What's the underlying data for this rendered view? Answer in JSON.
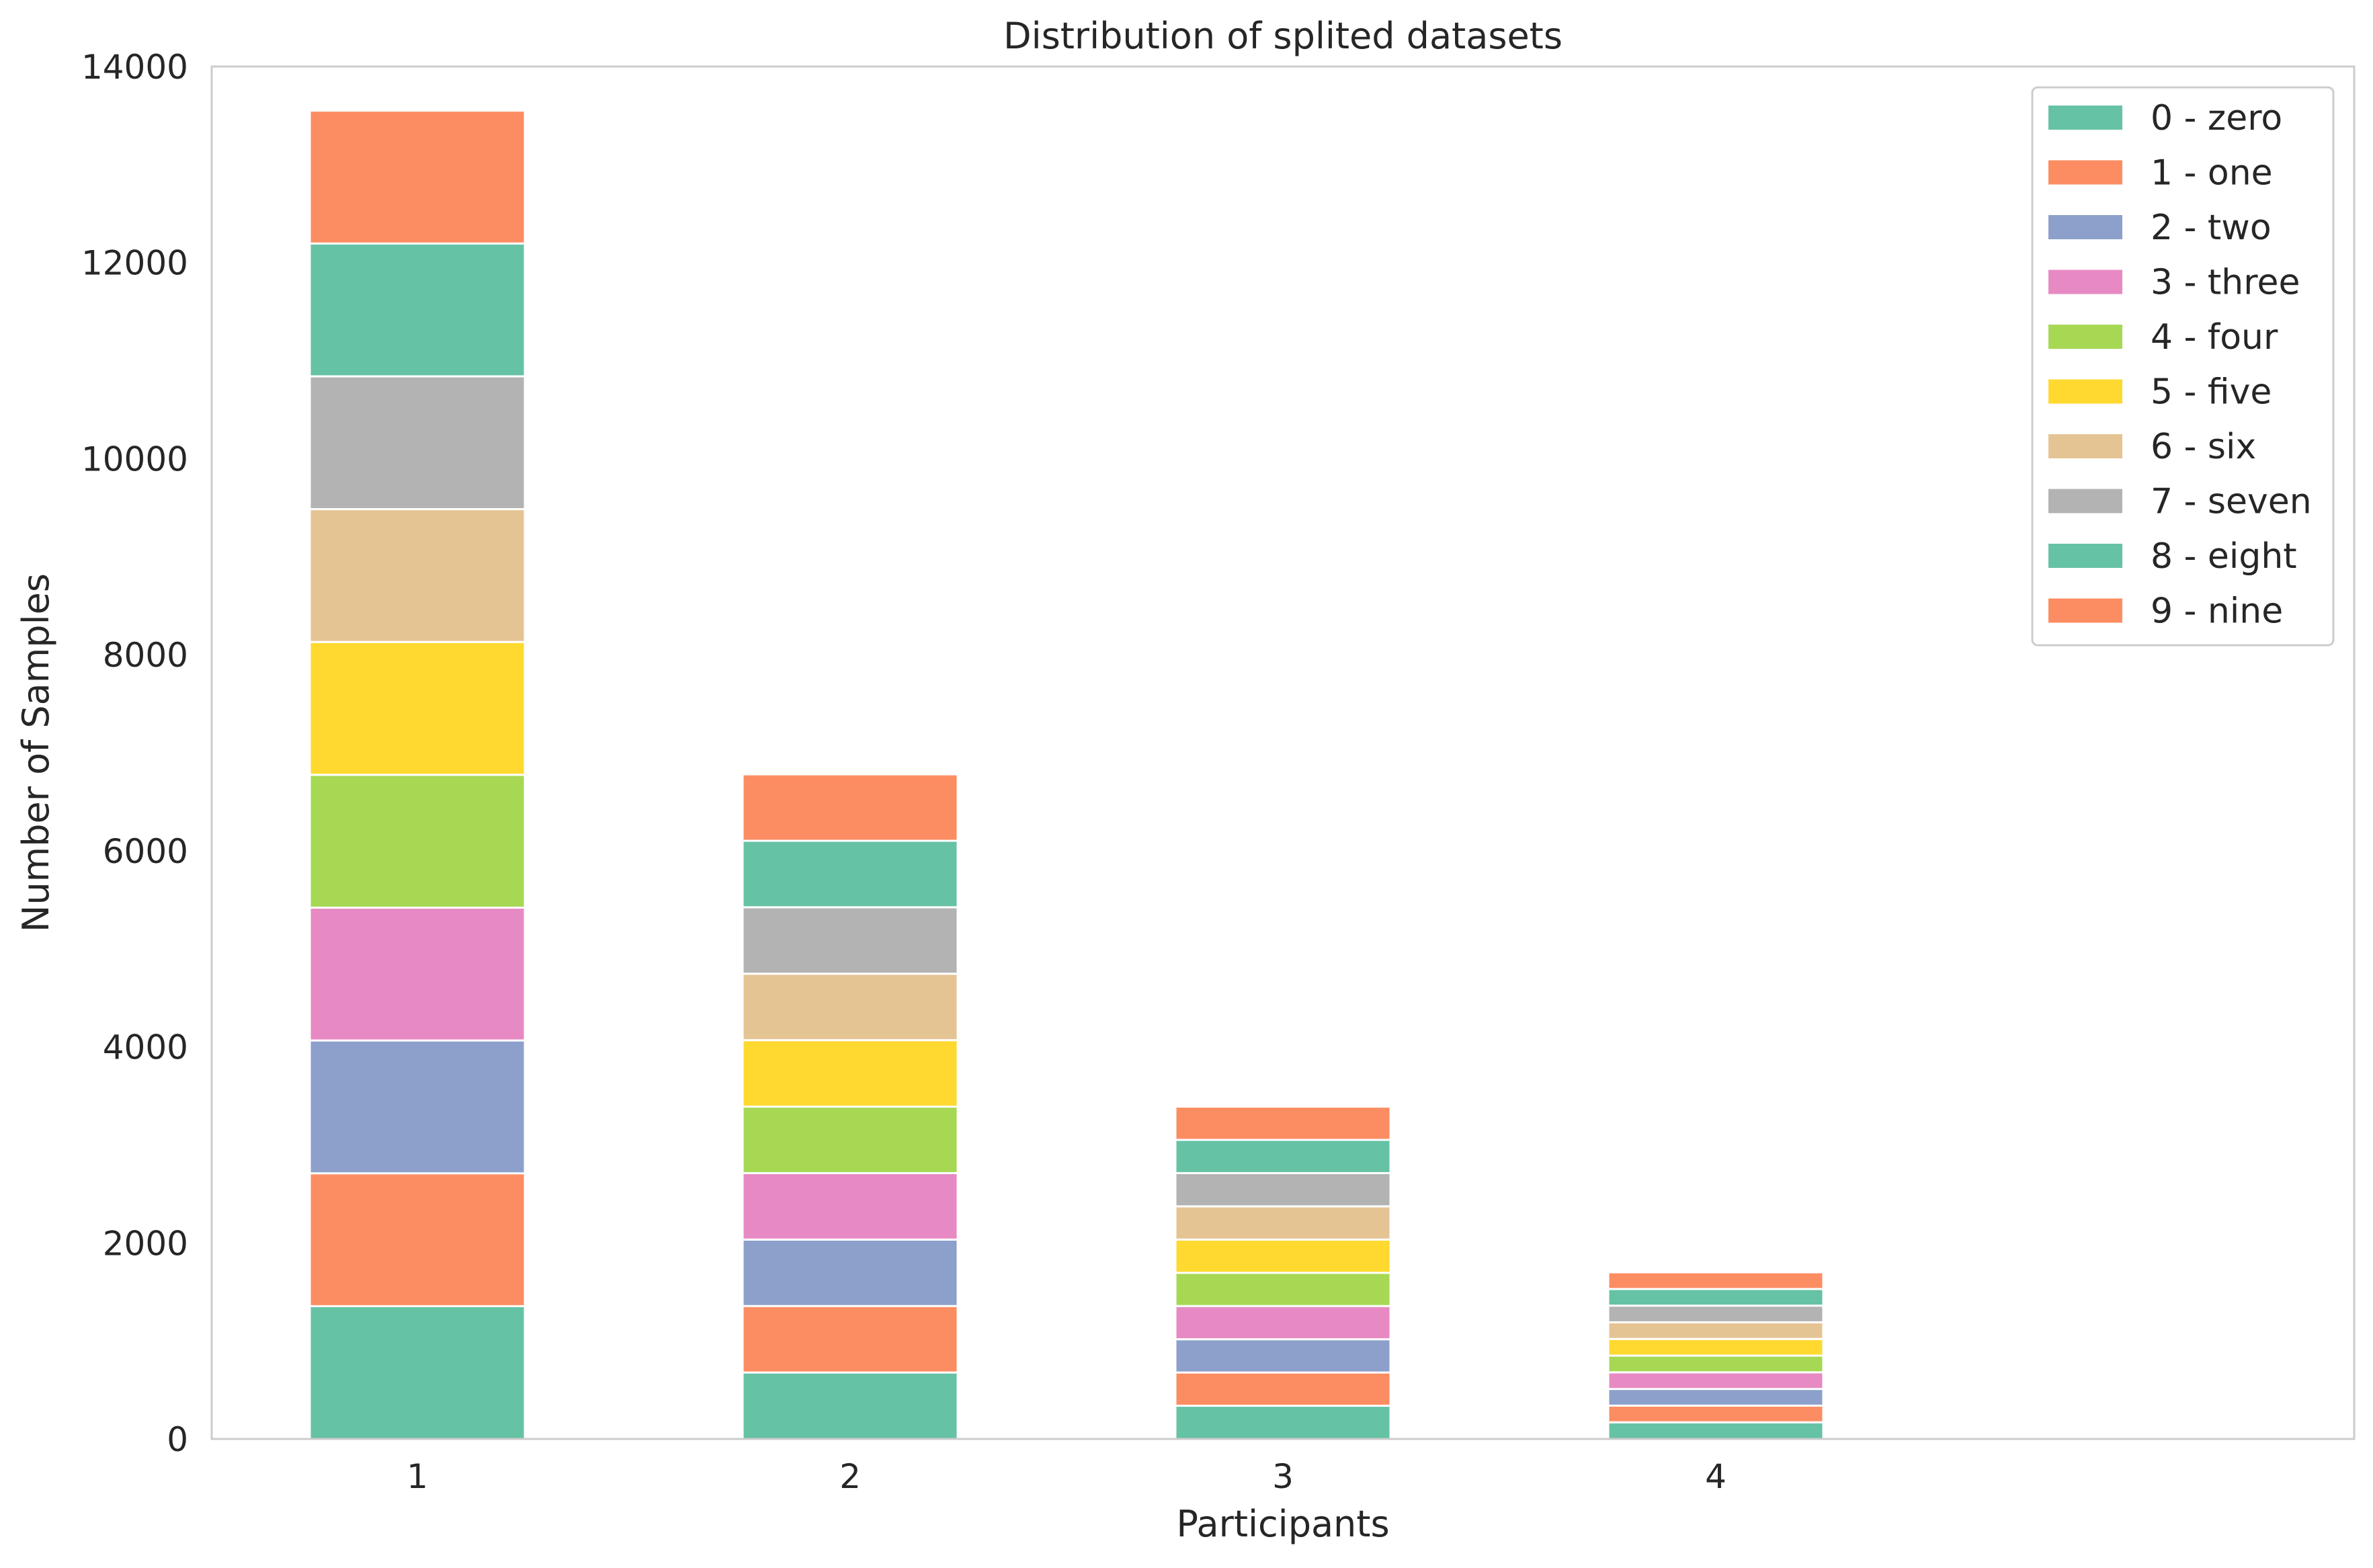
{
  "chart_data": {
    "type": "bar",
    "stacked": true,
    "title": "Distribution of splited datasets",
    "xlabel": "Participants",
    "ylabel": "Number of Samples",
    "categories": [
      "1",
      "2",
      "3",
      "4"
    ],
    "ylim": [
      0,
      14000
    ],
    "yticks": [
      0,
      2000,
      4000,
      6000,
      8000,
      10000,
      12000,
      14000
    ],
    "grid": false,
    "legend_position": "top-right",
    "series": [
      {
        "name": "0 - zero",
        "color": "#66c2a5",
        "values": [
          1355,
          678,
          339,
          170
        ]
      },
      {
        "name": "1 - one",
        "color": "#fc8d62",
        "values": [
          1355,
          678,
          339,
          170
        ]
      },
      {
        "name": "2 - two",
        "color": "#8da0cb",
        "values": [
          1355,
          678,
          339,
          170
        ]
      },
      {
        "name": "3 - three",
        "color": "#e78ac3",
        "values": [
          1355,
          678,
          339,
          170
        ]
      },
      {
        "name": "4 - four",
        "color": "#a6d854",
        "values": [
          1355,
          678,
          339,
          170
        ]
      },
      {
        "name": "5 - five",
        "color": "#ffd92f",
        "values": [
          1355,
          678,
          339,
          170
        ]
      },
      {
        "name": "6 - six",
        "color": "#e5c494",
        "values": [
          1355,
          678,
          339,
          170
        ]
      },
      {
        "name": "7 - seven",
        "color": "#b3b3b3",
        "values": [
          1355,
          678,
          339,
          170
        ]
      },
      {
        "name": "8 - eight",
        "color": "#66c2a5",
        "values": [
          1355,
          678,
          339,
          170
        ]
      },
      {
        "name": "9 - nine",
        "color": "#fc8d62",
        "values": [
          1355,
          678,
          339,
          170
        ]
      }
    ]
  }
}
